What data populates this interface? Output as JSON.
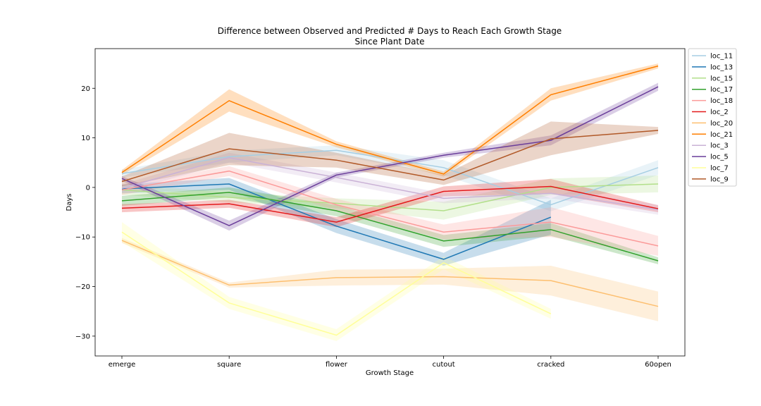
{
  "chart_data": {
    "type": "line",
    "title": "Difference between Observed and Predicted # Days to Reach Each Growth Stage",
    "subtitle": "Since Plant Date",
    "xlabel": "Growth Stage",
    "ylabel": "Days",
    "categories": [
      "emerge",
      "square",
      "flower",
      "cutout",
      "cracked",
      "60open"
    ],
    "ylim": [
      -34,
      28
    ],
    "yticks": [
      -30,
      -20,
      -10,
      0,
      10,
      20
    ],
    "ytick_labels": [
      "−30",
      "−20",
      "−10",
      "0",
      "10",
      "20"
    ],
    "grid": false,
    "legend_position": "outside top-right",
    "series": [
      {
        "name": "loc_11",
        "color": "#a6cee3",
        "values": [
          2.8,
          6.2,
          7.5,
          4.0,
          -3.5,
          4.0
        ],
        "lower": [
          2.0,
          5.0,
          6.5,
          2.5,
          -4.8,
          2.5
        ],
        "upper": [
          3.6,
          7.4,
          8.5,
          5.5,
          -2.2,
          5.5
        ]
      },
      {
        "name": "loc_13",
        "color": "#1f78b4",
        "values": [
          -0.3,
          0.7,
          -7.8,
          -14.5,
          -6.0,
          null
        ],
        "lower": [
          -1.2,
          -0.5,
          -9.2,
          -15.8,
          -9.5,
          null
        ],
        "upper": [
          0.6,
          1.9,
          -6.4,
          -13.2,
          -2.5,
          null
        ]
      },
      {
        "name": "loc_15",
        "color": "#b2df8a",
        "values": [
          -0.5,
          -2.0,
          -3.2,
          -4.7,
          0.0,
          0.7
        ],
        "lower": [
          -1.5,
          -3.0,
          -4.2,
          -6.5,
          -1.5,
          -1.0
        ],
        "upper": [
          0.5,
          -1.0,
          -2.2,
          -2.9,
          1.8,
          2.4
        ]
      },
      {
        "name": "loc_17",
        "color": "#33a02c",
        "values": [
          -2.7,
          -1.0,
          -4.7,
          -10.8,
          -8.5,
          -14.8
        ],
        "lower": [
          -3.7,
          -2.0,
          -5.8,
          -12.0,
          -9.8,
          -15.5
        ],
        "upper": [
          -1.7,
          0.0,
          -3.6,
          -9.6,
          -7.2,
          -14.1
        ]
      },
      {
        "name": "loc_18",
        "color": "#fb9a99",
        "values": [
          -0.5,
          3.3,
          -3.5,
          -9.0,
          -7.0,
          -11.8
        ],
        "lower": [
          -1.5,
          2.3,
          -4.7,
          -10.5,
          -10.0,
          -13.8
        ],
        "upper": [
          0.5,
          4.3,
          -2.3,
          -7.5,
          -4.0,
          -9.8
        ]
      },
      {
        "name": "loc_2",
        "color": "#e31a1c",
        "values": [
          -4.2,
          -3.3,
          -7.0,
          -0.8,
          0.2,
          -4.3
        ],
        "lower": [
          -5.0,
          -4.1,
          -8.0,
          -1.8,
          -1.3,
          -5.0
        ],
        "upper": [
          -3.4,
          -2.5,
          -6.0,
          0.2,
          1.7,
          -3.6
        ]
      },
      {
        "name": "loc_20",
        "color": "#fdbf6f",
        "values": [
          -10.7,
          -19.7,
          -18.2,
          -18.0,
          -18.8,
          -24.0
        ],
        "lower": [
          -11.2,
          -20.2,
          -19.8,
          -19.6,
          -21.8,
          -27.0
        ],
        "upper": [
          -10.2,
          -19.2,
          -16.6,
          -16.4,
          -15.8,
          -21.0
        ]
      },
      {
        "name": "loc_21",
        "color": "#ff7f00",
        "values": [
          3.0,
          17.5,
          8.7,
          2.7,
          18.7,
          24.5
        ],
        "lower": [
          2.5,
          15.3,
          8.1,
          2.2,
          17.5,
          24.0
        ],
        "upper": [
          3.5,
          19.8,
          9.3,
          3.2,
          20.0,
          25.0
        ]
      },
      {
        "name": "loc_3",
        "color": "#cab2d6",
        "values": [
          -0.2,
          6.0,
          2.0,
          -2.2,
          -1.2,
          -4.5
        ],
        "lower": [
          -1.0,
          5.0,
          1.0,
          -3.2,
          -2.2,
          -5.5
        ],
        "upper": [
          0.6,
          7.0,
          3.0,
          -1.2,
          -0.2,
          -3.5
        ]
      },
      {
        "name": "loc_5",
        "color": "#6a3d9a",
        "values": [
          1.8,
          -7.7,
          2.5,
          6.5,
          9.5,
          20.3
        ],
        "lower": [
          1.3,
          -8.7,
          2.0,
          6.0,
          8.5,
          19.5
        ],
        "upper": [
          2.3,
          -6.7,
          3.0,
          7.0,
          10.5,
          21.1
        ]
      },
      {
        "name": "loc_7",
        "color": "#ffff99",
        "values": [
          -9.0,
          -23.3,
          -29.8,
          -15.2,
          -25.5,
          null
        ],
        "lower": [
          -11.0,
          -24.5,
          -31.0,
          -16.5,
          -26.5,
          null
        ],
        "upper": [
          -7.0,
          -22.1,
          -28.6,
          -13.9,
          -24.5,
          null
        ]
      },
      {
        "name": "loc_9",
        "color": "#b15928",
        "values": [
          1.2,
          7.8,
          5.5,
          1.5,
          9.8,
          11.5
        ],
        "lower": [
          0.2,
          4.5,
          4.0,
          0.5,
          6.5,
          10.8
        ],
        "upper": [
          2.2,
          11.0,
          7.0,
          2.5,
          13.3,
          12.2
        ]
      }
    ]
  }
}
